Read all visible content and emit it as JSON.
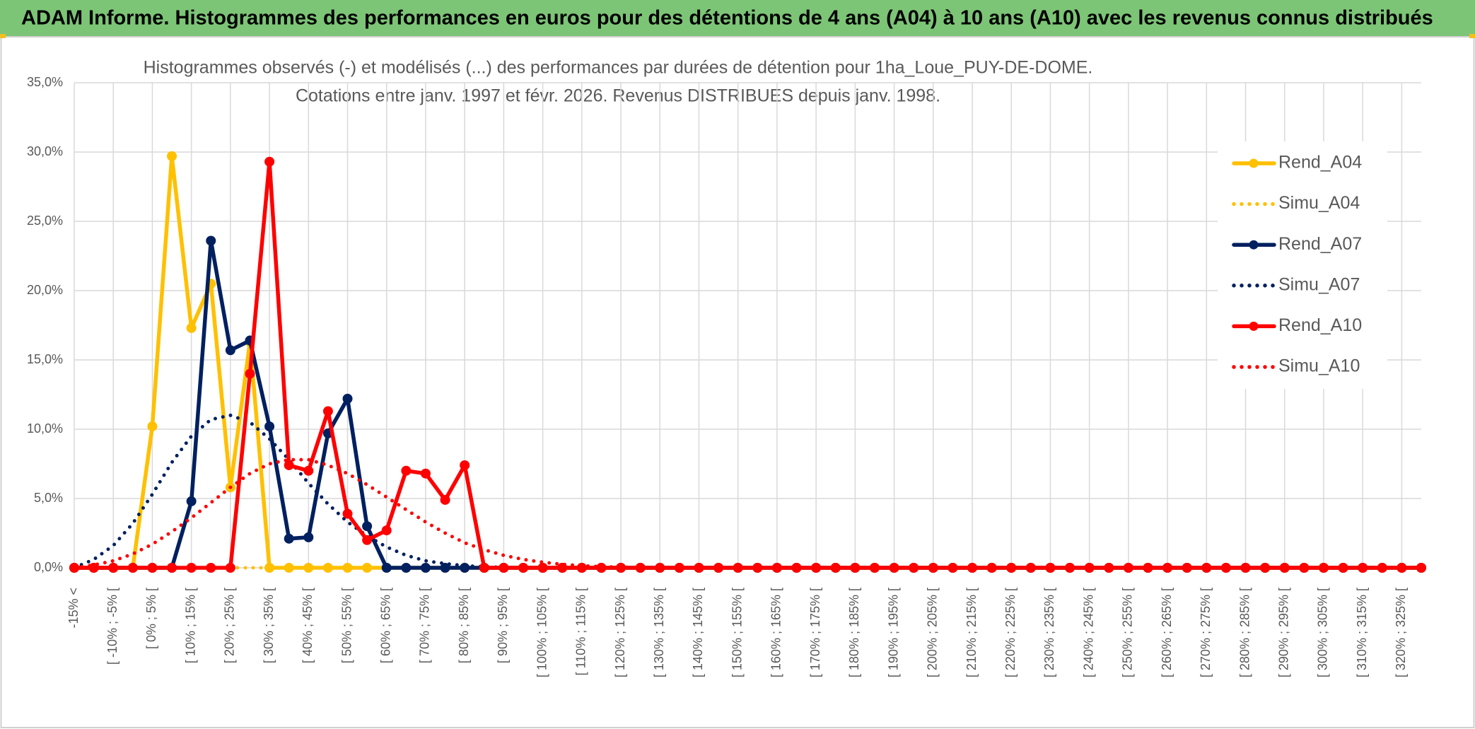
{
  "header": {
    "title": "ADAM Informe. Histogrammes des performances en euros pour des détentions de 4 ans (A04) à 10 ans (A10) avec les revenus connus distribués"
  },
  "chart_data": {
    "type": "line",
    "title": [
      "Histogrammes observés (-) et modélisés (...) des performances par durées de détention pour 1ha_Loue_PUY-DE-DOME.",
      "Cotations entre janv. 1997 et févr. 2026. Revenus DISTRIBUES depuis janv. 1998."
    ],
    "categories": [
      "-15% <",
      null,
      "[ -10% ; -5% [",
      null,
      "[ 0% ; 5% [",
      null,
      "[ 10% ; 15% [",
      null,
      "[ 20% ; 25% [",
      null,
      "[ 30% ; 35% [",
      null,
      "[ 40% ; 45% [",
      null,
      "[ 50% ; 55% [",
      null,
      "[ 60% ; 65% [",
      null,
      "[ 70% ; 75% [",
      null,
      "[ 80% ; 85% [",
      null,
      "[ 90% ; 95% [",
      null,
      "[ 100% ; 105% [",
      null,
      "[ 110% ; 115% [",
      null,
      "[ 120% ; 125% [",
      null,
      "[ 130% ; 135% [",
      null,
      "[ 140% ; 145% [",
      null,
      "[ 150% ; 155% [",
      null,
      "[ 160% ; 165% [",
      null,
      "[ 170% ; 175% [",
      null,
      "[ 180% ; 185% [",
      null,
      "[ 190% ; 195% [",
      null,
      "[ 200% ; 205% [",
      null,
      "[ 210% ; 215% [",
      null,
      "[ 220% ; 225% [",
      null,
      "[ 230% ; 235% [",
      null,
      "[ 240% ; 245% [",
      null,
      "[ 250% ; 255% [",
      null,
      "[ 260% ; 265% [",
      null,
      "[ 270% ; 275% [",
      null,
      "[ 280% ; 285% [",
      null,
      "[ 290% ; 295% [",
      null,
      "[ 300% ; 305% [",
      null,
      "[ 310% ; 315% [",
      null,
      "[ 320% ; 325% [",
      null
    ],
    "series": [
      {
        "name": "Rend_A04",
        "color": "#ffc000",
        "style": "solid",
        "values": [
          0,
          0,
          0,
          0,
          10.2,
          29.7,
          17.3,
          20.5,
          5.8,
          16.3,
          0,
          0,
          0,
          0,
          0,
          0,
          0,
          0,
          0,
          0,
          0,
          0,
          0,
          0,
          0,
          0,
          0,
          0,
          0,
          0,
          0,
          0,
          0,
          0,
          0,
          0,
          0,
          0,
          0,
          0,
          0,
          0,
          0,
          0,
          0,
          0,
          0,
          0,
          0,
          0,
          0,
          0,
          0,
          0,
          0,
          0,
          0,
          0,
          0,
          0,
          0,
          0,
          0,
          0,
          0,
          0,
          0,
          0,
          0,
          0
        ]
      },
      {
        "name": "Simu_A04",
        "color": "#ffc000",
        "style": "dotted",
        "values": [
          0,
          0,
          0,
          0,
          0,
          0,
          0,
          0,
          0,
          0,
          0,
          0,
          0,
          0,
          0,
          0,
          0,
          0,
          0,
          0,
          0,
          0,
          0,
          0,
          0,
          0,
          0,
          0,
          0,
          0,
          0,
          0,
          0,
          0,
          0,
          0,
          0,
          0,
          0,
          0,
          0,
          0,
          0,
          0,
          0,
          0,
          0,
          0,
          0,
          0,
          0,
          0,
          0,
          0,
          0,
          0,
          0,
          0,
          0,
          0,
          0,
          0,
          0,
          0,
          0,
          0,
          0,
          0,
          0,
          0
        ]
      },
      {
        "name": "Rend_A07",
        "color": "#002060",
        "style": "solid",
        "values": [
          0,
          0,
          0,
          0,
          0,
          0,
          4.8,
          23.6,
          15.7,
          16.4,
          10.2,
          2.1,
          2.2,
          9.7,
          12.2,
          3.0,
          0,
          0,
          0,
          0,
          0,
          0,
          0,
          0,
          0,
          0,
          0,
          0,
          0,
          0,
          0,
          0,
          0,
          0,
          0,
          0,
          0,
          0,
          0,
          0,
          0,
          0,
          0,
          0,
          0,
          0,
          0,
          0,
          0,
          0,
          0,
          0,
          0,
          0,
          0,
          0,
          0,
          0,
          0,
          0,
          0,
          0,
          0,
          0,
          0,
          0,
          0,
          0,
          0,
          0
        ]
      },
      {
        "name": "Simu_A07",
        "color": "#002060",
        "style": "dotted",
        "values": [
          0,
          0.6,
          1.6,
          3.2,
          5.3,
          7.6,
          9.5,
          10.7,
          11.0,
          10.5,
          9.3,
          7.8,
          6.1,
          4.6,
          3.3,
          2.3,
          1.5,
          0.9,
          0.5,
          0.3,
          0.15,
          0.07,
          0.03,
          0,
          0,
          0,
          0,
          0,
          0,
          0,
          0,
          0,
          0,
          0,
          0,
          0,
          0,
          0,
          0,
          0,
          0,
          0,
          0,
          0,
          0,
          0,
          0,
          0,
          0,
          0,
          0,
          0,
          0,
          0,
          0,
          0,
          0,
          0,
          0,
          0,
          0,
          0,
          0,
          0,
          0,
          0,
          0,
          0,
          0,
          0
        ]
      },
      {
        "name": "Rend_A10",
        "color": "#ff0000",
        "style": "solid",
        "values": [
          0,
          0,
          0,
          0,
          0,
          0,
          0,
          0,
          0,
          14,
          29.3,
          7.4,
          7.0,
          11.3,
          3.9,
          2.0,
          2.7,
          7.0,
          6.8,
          4.9,
          7.4,
          0,
          0,
          0,
          0,
          0,
          0,
          0,
          0,
          0,
          0,
          0,
          0,
          0,
          0,
          0,
          0,
          0,
          0,
          0,
          0,
          0,
          0,
          0,
          0,
          0,
          0,
          0,
          0,
          0,
          0,
          0,
          0,
          0,
          0,
          0,
          0,
          0,
          0,
          0,
          0,
          0,
          0,
          0,
          0,
          0,
          0,
          0,
          0,
          0
        ]
      },
      {
        "name": "Simu_A10",
        "color": "#ff0000",
        "style": "dotted",
        "values": [
          0,
          0.2,
          0.5,
          1.0,
          1.7,
          2.6,
          3.6,
          4.7,
          5.8,
          6.8,
          7.5,
          7.8,
          7.8,
          7.4,
          6.8,
          6.0,
          5.1,
          4.2,
          3.3,
          2.5,
          1.8,
          1.3,
          0.9,
          0.6,
          0.4,
          0.25,
          0.15,
          0.08,
          0.04,
          0.02,
          0,
          0,
          0,
          0,
          0,
          0,
          0,
          0,
          0,
          0,
          0,
          0,
          0,
          0,
          0,
          0,
          0,
          0,
          0,
          0,
          0,
          0,
          0,
          0,
          0,
          0,
          0,
          0,
          0,
          0,
          0,
          0,
          0,
          0,
          0,
          0,
          0,
          0,
          0,
          0
        ]
      }
    ],
    "ylim": [
      0,
      35
    ],
    "yticks": [
      {
        "value": 0,
        "label": "0,0%"
      },
      {
        "value": 5,
        "label": "5,0%"
      },
      {
        "value": 10,
        "label": "10,0%"
      },
      {
        "value": 15,
        "label": "15,0%"
      },
      {
        "value": 20,
        "label": "20,0%"
      },
      {
        "value": 25,
        "label": "25,0%"
      },
      {
        "value": 30,
        "label": "30,0%"
      },
      {
        "value": 35,
        "label": "35,0%"
      }
    ],
    "grid": true,
    "legend": "right"
  }
}
